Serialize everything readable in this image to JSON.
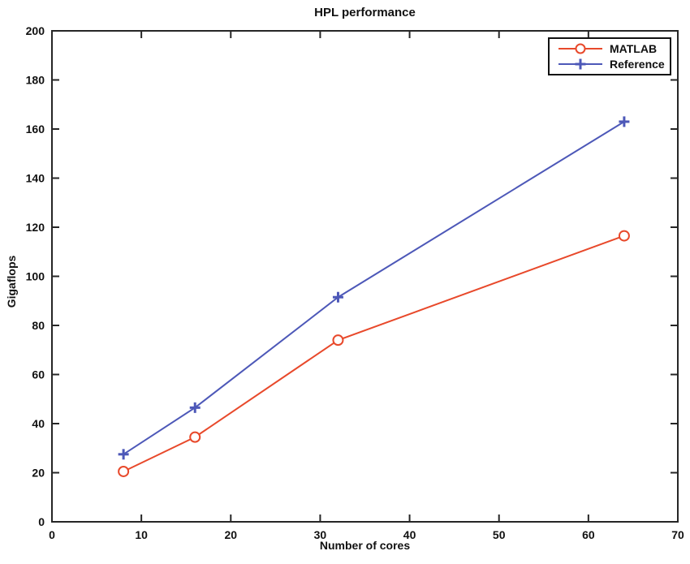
{
  "figure": {
    "title": "HPL performance",
    "xlabel": "Number of cores",
    "ylabel": "Gigaflops"
  },
  "legend": {
    "position": "top-right",
    "items": [
      {
        "label": "MATLAB",
        "color": "#e8492b",
        "marker": "circle"
      },
      {
        "label": "Reference",
        "color": "#4d58b8",
        "marker": "plus"
      }
    ]
  },
  "chart_data": {
    "type": "line",
    "title": "HPL performance",
    "xlabel": "Number of cores",
    "ylabel": "Gigaflops",
    "xlim": [
      0,
      70
    ],
    "ylim": [
      0,
      200
    ],
    "xticks": [
      0,
      10,
      20,
      30,
      40,
      50,
      60,
      70
    ],
    "yticks": [
      0,
      20,
      40,
      60,
      80,
      100,
      120,
      140,
      160,
      180,
      200
    ],
    "grid": false,
    "legend_position": "top-right",
    "x": [
      8,
      16,
      32,
      64
    ],
    "series": [
      {
        "name": "MATLAB",
        "color": "#e8492b",
        "marker": "circle",
        "x": [
          8,
          16,
          32,
          64
        ],
        "values": [
          20.5,
          34.5,
          74,
          116.5
        ]
      },
      {
        "name": "Reference",
        "color": "#4d58b8",
        "marker": "plus",
        "x": [
          8,
          16,
          32,
          64
        ],
        "values": [
          27.5,
          46.5,
          91.5,
          163
        ]
      }
    ]
  }
}
